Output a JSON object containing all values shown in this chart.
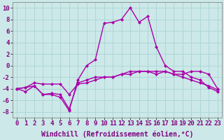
{
  "xlabel": "Windchill (Refroidissement éolien,°C)",
  "ylabel": "",
  "bg_color": "#cce8e8",
  "line_color": "#aa00aa",
  "xlim": [
    -0.5,
    23.5
  ],
  "ylim": [
    -9,
    11
  ],
  "xticks": [
    0,
    1,
    2,
    3,
    4,
    5,
    6,
    7,
    8,
    9,
    10,
    11,
    12,
    13,
    14,
    15,
    16,
    17,
    18,
    19,
    20,
    21,
    22,
    23
  ],
  "yticks": [
    -8,
    -6,
    -4,
    -2,
    0,
    2,
    4,
    6,
    8,
    10
  ],
  "line1_x": [
    0,
    1,
    2,
    3,
    4,
    5,
    6,
    7,
    8,
    9,
    10,
    11,
    12,
    13,
    14,
    15,
    16,
    17,
    18,
    19,
    20,
    21,
    22,
    23
  ],
  "line1_y": [
    -4,
    -4.5,
    -3.5,
    -5,
    -5,
    -5.5,
    -7.8,
    -2.5,
    0,
    1,
    7.3,
    7.5,
    8,
    10,
    7.5,
    8.5,
    3.2,
    0,
    -1,
    -1,
    -2,
    -2.5,
    -3.8,
    -4.5
  ],
  "line2_x": [
    0,
    1,
    2,
    3,
    4,
    5,
    6,
    7,
    8,
    9,
    10,
    11,
    12,
    13,
    14,
    15,
    16,
    17,
    18,
    19,
    20,
    21,
    22,
    23
  ],
  "line2_y": [
    -4,
    -3.8,
    -3.5,
    -5,
    -4.8,
    -5,
    -7.5,
    -3,
    -2.5,
    -2,
    -2,
    -2,
    -1.5,
    -1,
    -1,
    -1,
    -1.5,
    -1,
    -1.5,
    -1.5,
    -1,
    -1,
    -1.5,
    -4
  ],
  "line3_x": [
    0,
    1,
    2,
    3,
    4,
    5,
    6,
    7,
    8,
    9,
    10,
    11,
    12,
    13,
    14,
    15,
    16,
    17,
    18,
    19,
    20,
    21,
    22,
    23
  ],
  "line3_y": [
    -4,
    -3.8,
    -3,
    -3.2,
    -3.2,
    -3.2,
    -5,
    -3.2,
    -3,
    -2.5,
    -2,
    -2,
    -1.5,
    -1.5,
    -1,
    -1,
    -1,
    -1,
    -1.5,
    -2,
    -2.5,
    -3,
    -3.5,
    -4.2
  ],
  "grid_color": "#aad4d4",
  "marker": "D",
  "markersize": 2,
  "linewidth": 1.0,
  "xlabel_fontsize": 7,
  "tick_fontsize": 6.5
}
